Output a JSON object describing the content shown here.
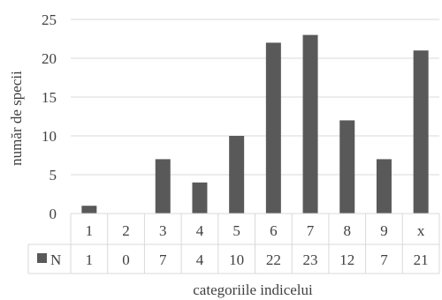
{
  "chart_data": {
    "type": "bar",
    "title": "",
    "xlabel": "categoriile indicelui",
    "ylabel": "număr de specii",
    "categories": [
      "1",
      "2",
      "3",
      "4",
      "5",
      "6",
      "7",
      "8",
      "9",
      "x"
    ],
    "series": [
      {
        "name": "N",
        "values": [
          1,
          0,
          7,
          4,
          10,
          22,
          23,
          12,
          7,
          21
        ],
        "color": "#595959"
      }
    ],
    "ylim": [
      0,
      25
    ],
    "yticks": [
      0,
      5,
      10,
      15,
      20,
      25
    ],
    "grid": true,
    "legend": "data-table"
  }
}
